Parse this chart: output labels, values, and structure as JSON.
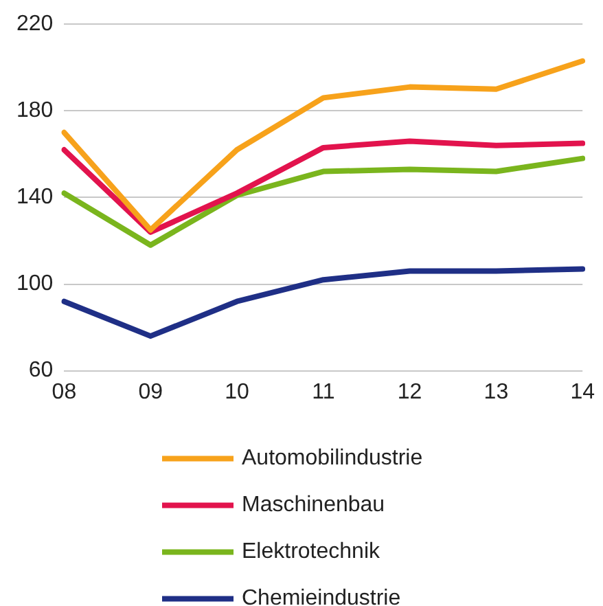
{
  "chart_data": {
    "type": "line",
    "categories": [
      "08",
      "09",
      "10",
      "11",
      "12",
      "13",
      "14"
    ],
    "series": [
      {
        "name": "Automobilindustrie",
        "color": "#f7a21b",
        "values": [
          170,
          125,
          162,
          186,
          191,
          190,
          203
        ]
      },
      {
        "name": "Maschinenbau",
        "color": "#e2134d",
        "values": [
          162,
          124,
          142,
          163,
          166,
          164,
          165
        ]
      },
      {
        "name": "Elektrotechnik",
        "color": "#7ab51d",
        "values": [
          142,
          118,
          141,
          152,
          153,
          152,
          158
        ]
      },
      {
        "name": "Chemieindustrie",
        "color": "#1f2f86",
        "values": [
          92,
          76,
          92,
          102,
          106,
          106,
          107
        ]
      }
    ],
    "ylim": [
      60,
      220
    ],
    "yticks": [
      60,
      100,
      140,
      180,
      220
    ],
    "grid": "y",
    "legend": "bottom",
    "marker": "none",
    "line_style": "solid"
  }
}
